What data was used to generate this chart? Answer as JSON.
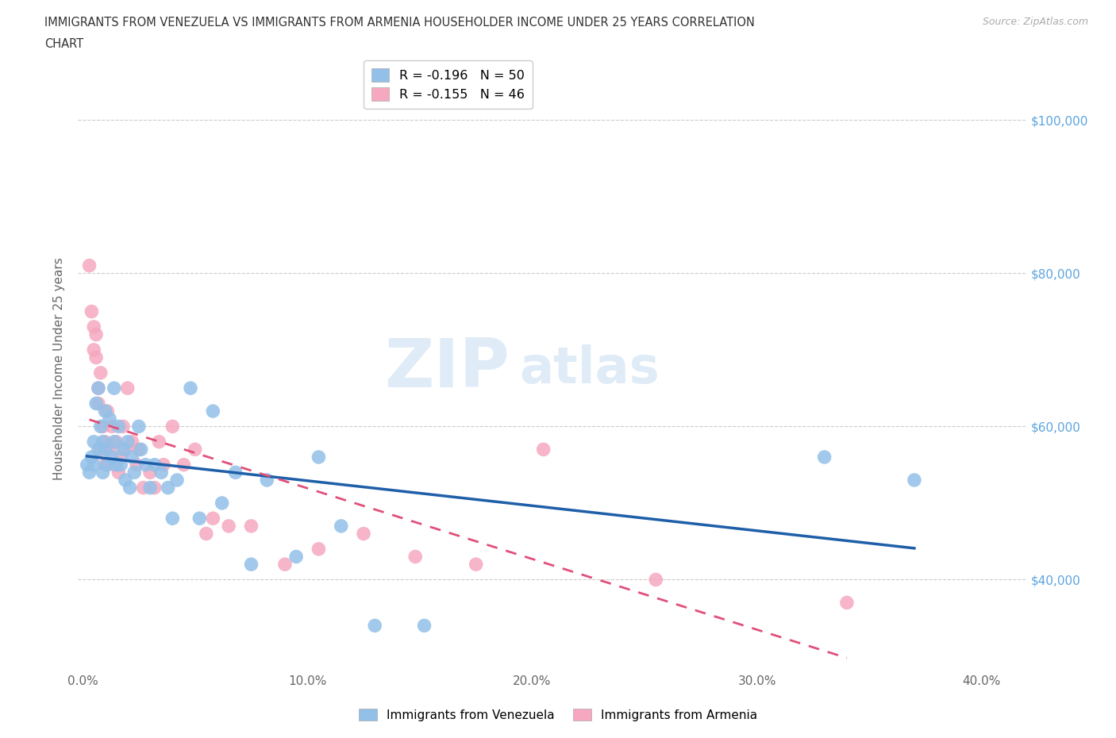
{
  "title_line1": "IMMIGRANTS FROM VENEZUELA VS IMMIGRANTS FROM ARMENIA HOUSEHOLDER INCOME UNDER 25 YEARS CORRELATION",
  "title_line2": "CHART",
  "source_text": "Source: ZipAtlas.com",
  "ylabel": "Householder Income Under 25 years",
  "xlim": [
    -0.002,
    0.42
  ],
  "ylim": [
    28000,
    107000
  ],
  "yticks": [
    40000,
    60000,
    80000,
    100000
  ],
  "ytick_labels": [
    "$40,000",
    "$60,000",
    "$80,000",
    "$100,000"
  ],
  "xticks": [
    0.0,
    0.1,
    0.2,
    0.3,
    0.4
  ],
  "xtick_labels": [
    "0.0%",
    "10.0%",
    "20.0%",
    "30.0%",
    "40.0%"
  ],
  "venezuela_color": "#92c0e8",
  "armenia_color": "#f5a8bf",
  "venezuela_line_color": "#1e5fa8",
  "armenia_line_color": "#e0507a",
  "R_venezuela": -0.196,
  "N_venezuela": 50,
  "R_armenia": -0.155,
  "N_armenia": 46,
  "legend_label_venezuela": "Immigrants from Venezuela",
  "legend_label_armenia": "Immigrants from Armenia",
  "background_color": "#ffffff",
  "grid_color": "#cccccc",
  "watermark_zip": "ZIP",
  "watermark_atlas": "atlas",
  "venezuela_x": [
    0.002,
    0.003,
    0.004,
    0.005,
    0.005,
    0.006,
    0.007,
    0.007,
    0.008,
    0.009,
    0.009,
    0.01,
    0.01,
    0.011,
    0.012,
    0.013,
    0.014,
    0.014,
    0.015,
    0.016,
    0.017,
    0.018,
    0.019,
    0.02,
    0.021,
    0.022,
    0.023,
    0.025,
    0.026,
    0.028,
    0.03,
    0.032,
    0.035,
    0.038,
    0.04,
    0.042,
    0.048,
    0.052,
    0.058,
    0.062,
    0.068,
    0.075,
    0.082,
    0.095,
    0.105,
    0.115,
    0.13,
    0.152,
    0.33,
    0.37
  ],
  "venezuela_y": [
    55000,
    54000,
    56000,
    58000,
    55000,
    63000,
    65000,
    57000,
    60000,
    58000,
    54000,
    62000,
    57000,
    55000,
    61000,
    56000,
    65000,
    58000,
    55000,
    60000,
    55000,
    57000,
    53000,
    58000,
    52000,
    56000,
    54000,
    60000,
    57000,
    55000,
    52000,
    55000,
    54000,
    52000,
    48000,
    53000,
    65000,
    48000,
    62000,
    50000,
    54000,
    42000,
    53000,
    43000,
    56000,
    47000,
    34000,
    34000,
    56000,
    53000
  ],
  "armenia_x": [
    0.003,
    0.004,
    0.005,
    0.005,
    0.006,
    0.006,
    0.007,
    0.007,
    0.008,
    0.008,
    0.009,
    0.01,
    0.01,
    0.011,
    0.012,
    0.013,
    0.014,
    0.015,
    0.016,
    0.017,
    0.018,
    0.019,
    0.02,
    0.022,
    0.024,
    0.025,
    0.027,
    0.03,
    0.032,
    0.034,
    0.036,
    0.04,
    0.045,
    0.05,
    0.055,
    0.058,
    0.065,
    0.075,
    0.09,
    0.105,
    0.125,
    0.148,
    0.175,
    0.205,
    0.255,
    0.34
  ],
  "armenia_y": [
    81000,
    75000,
    73000,
    70000,
    72000,
    69000,
    65000,
    63000,
    67000,
    57000,
    60000,
    58000,
    55000,
    62000,
    57000,
    60000,
    55000,
    58000,
    54000,
    56000,
    60000,
    57000,
    65000,
    58000,
    55000,
    57000,
    52000,
    54000,
    52000,
    58000,
    55000,
    60000,
    55000,
    57000,
    46000,
    48000,
    47000,
    47000,
    42000,
    44000,
    46000,
    43000,
    42000,
    57000,
    40000,
    37000
  ]
}
